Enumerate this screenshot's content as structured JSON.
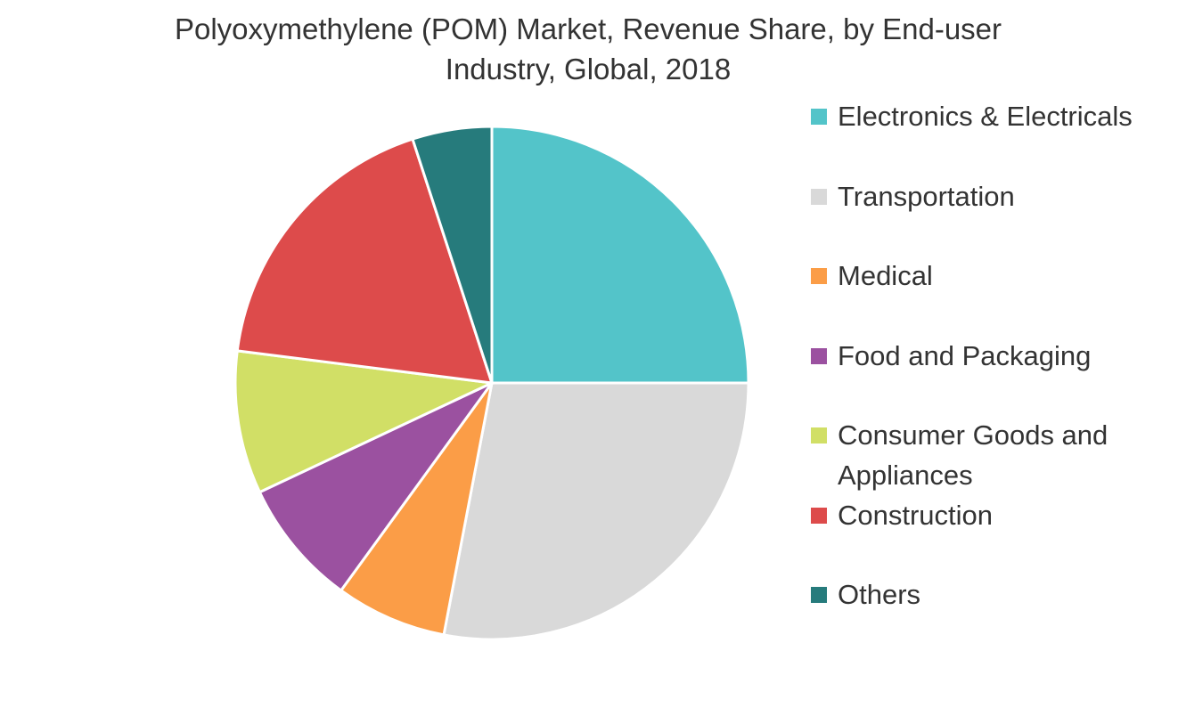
{
  "chart_data": {
    "type": "pie",
    "title": "Polyoxymethylene (POM) Market, Revenue Share, by End-user Industry, Global, 2018",
    "categories": [
      "Electronics & Electricals",
      "Transportation",
      "Medical",
      "Food and Packaging",
      "Consumer Goods and Appliances",
      "Construction",
      "Others"
    ],
    "values": [
      25,
      28,
      7,
      8,
      9,
      18,
      5
    ],
    "colors": [
      "#53c4c9",
      "#d9d9d9",
      "#fb9d47",
      "#9b51a0",
      "#d1df66",
      "#dd4b4b",
      "#267b7c"
    ],
    "legend": "right"
  }
}
